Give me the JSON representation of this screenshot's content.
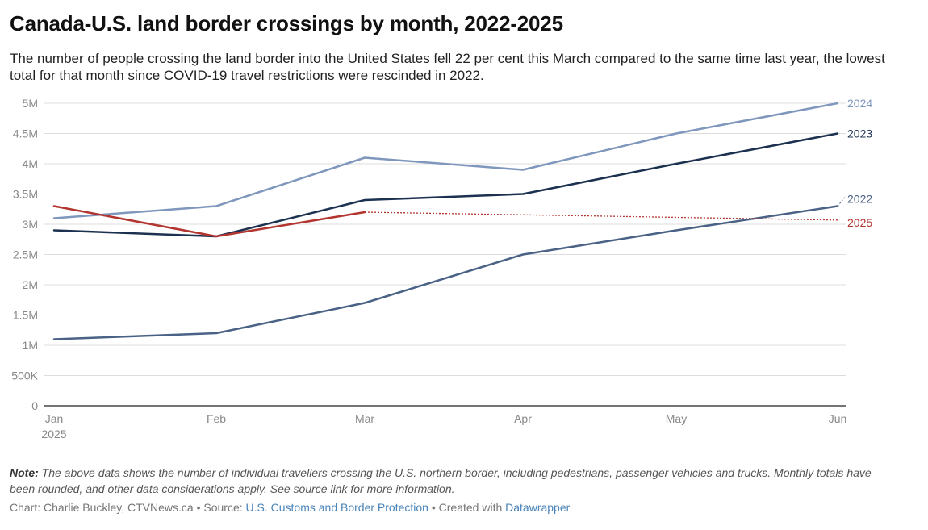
{
  "title": "Canada-U.S. land border crossings by month, 2022-2025",
  "subtitle": "The number of people crossing the land border into the United States fell 22 per cent this March compared to the same time last year, the lowest total for that month since COVID-19 travel restrictions were rescinded in 2022.",
  "note": {
    "label": "Note:",
    "text": " The above data shows the number of individual travellers crossing the U.S. northern border, including pedestrians, passenger vehicles and trucks. Monthly totals have been rounded, and other data considerations apply. See source link for more information."
  },
  "footer": {
    "chart_by": "Chart: Charlie Buckley, CTVNews.ca",
    "sep1": " • Source: ",
    "source": "U.S. Customs and Border Protection",
    "sep2": " • Created with ",
    "tool": "Datawrapper"
  },
  "colors": {
    "2022": "#4a6285",
    "2023": "#1c3150",
    "2024": "#7f97bd",
    "2025": "#b33530",
    "grid": "#dddddd",
    "axis": "#222222",
    "tick": "#888888"
  },
  "chart_data": {
    "type": "line",
    "x_month_positions": [
      0,
      1,
      2,
      3,
      4,
      5
    ],
    "x_ticks": [
      {
        "pos": 0,
        "label": "Jan",
        "sub": "2025"
      },
      {
        "pos": 1,
        "label": "Feb"
      },
      {
        "pos": 2,
        "label": "Mar"
      },
      {
        "pos": 3,
        "label": "Apr"
      },
      {
        "pos": 4,
        "label": "May"
      },
      {
        "pos": 5,
        "label": "Jun"
      }
    ],
    "y_ticks": [
      {
        "v": 0,
        "label": "0"
      },
      {
        "v": 0.5,
        "label": "500K"
      },
      {
        "v": 1,
        "label": "1M"
      },
      {
        "v": 1.5,
        "label": "1.5M"
      },
      {
        "v": 2,
        "label": "2M"
      },
      {
        "v": 2.5,
        "label": "2.5M"
      },
      {
        "v": 3,
        "label": "3M"
      },
      {
        "v": 3.5,
        "label": "3.5M"
      },
      {
        "v": 4,
        "label": "4M"
      },
      {
        "v": 4.5,
        "label": "4.5M"
      },
      {
        "v": 5,
        "label": "5M"
      }
    ],
    "ylim": [
      0,
      5
    ],
    "y_unit": "millions",
    "series": [
      {
        "name": "2024",
        "x": [
          0,
          1,
          2,
          3,
          4,
          5
        ],
        "values": [
          3.1,
          3.3,
          4.1,
          3.9,
          4.5,
          5.0
        ]
      },
      {
        "name": "2023",
        "x": [
          0,
          1,
          2,
          3,
          4,
          5
        ],
        "values": [
          2.9,
          2.8,
          3.4,
          3.5,
          4.0,
          4.5
        ]
      },
      {
        "name": "2022",
        "x": [
          0,
          1,
          2,
          3,
          4,
          5
        ],
        "values": [
          1.1,
          1.2,
          1.7,
          2.5,
          2.9,
          3.3
        ]
      },
      {
        "name": "2025",
        "x": [
          0,
          1,
          2
        ],
        "values": [
          3.3,
          2.8,
          3.2
        ],
        "projection_x": [
          2,
          5
        ],
        "projection_values": [
          3.2,
          3.07
        ]
      }
    ]
  }
}
